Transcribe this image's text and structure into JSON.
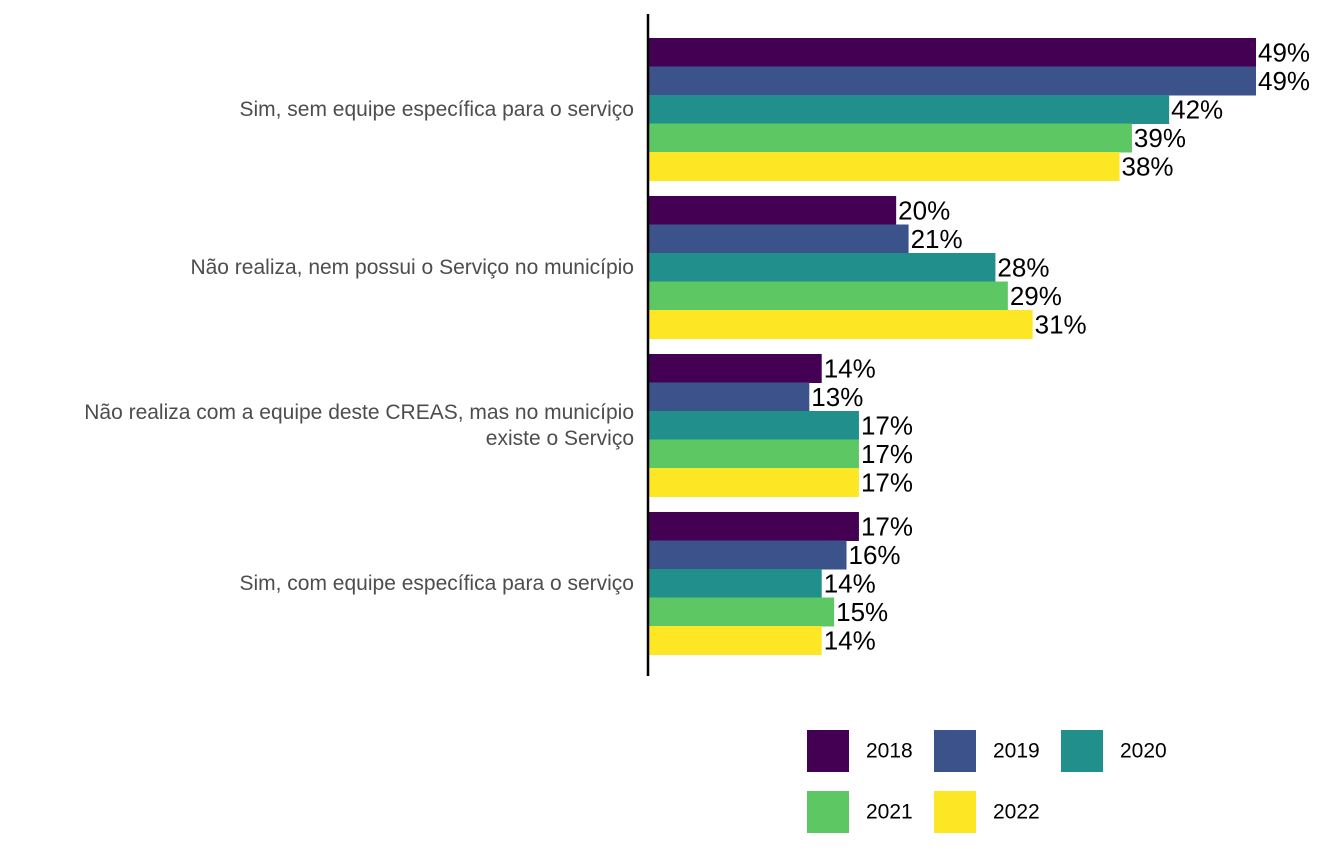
{
  "chart_data": {
    "type": "bar",
    "orientation": "horizontal",
    "title": "",
    "xlabel": "",
    "ylabel": "",
    "value_suffix": "%",
    "xlim": [
      0,
      49
    ],
    "grid": false,
    "legend_position": "bottom-right",
    "categories": [
      [
        "Sim, sem equipe específica para o serviço"
      ],
      [
        "Não realiza, nem possui o Serviço no município"
      ],
      [
        "Não realiza com a equipe deste CREAS, mas no município",
        "existe o Serviço"
      ],
      [
        "Sim, com equipe específica para o serviço"
      ]
    ],
    "series": [
      {
        "name": "2018",
        "color": "#440154",
        "values": [
          49,
          20,
          14,
          17
        ]
      },
      {
        "name": "2019",
        "color": "#3B528B",
        "values": [
          49,
          21,
          13,
          16
        ]
      },
      {
        "name": "2020",
        "color": "#21908C",
        "values": [
          42,
          28,
          17,
          14
        ]
      },
      {
        "name": "2021",
        "color": "#5DC863",
        "values": [
          39,
          29,
          17,
          15
        ]
      },
      {
        "name": "2022",
        "color": "#FDE725",
        "values": [
          38,
          31,
          17,
          14
        ]
      }
    ]
  }
}
